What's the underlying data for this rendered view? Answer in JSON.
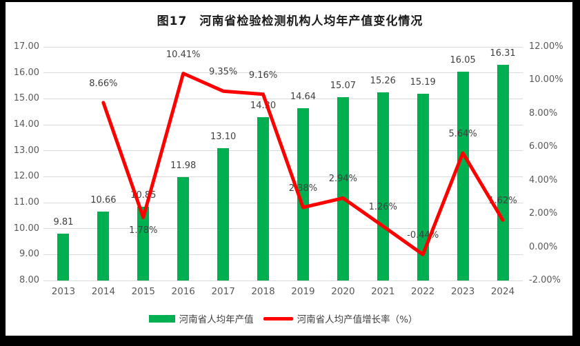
{
  "title": "图17　河南省检验检测机构人均年产值变化情况",
  "legend": {
    "bar_label": "河南省人均年产值",
    "line_label": "河南省人均产值增长率（%）"
  },
  "chart_data": {
    "type": "bar+line",
    "title": "图17　河南省检验检测机构人均年产值变化情况",
    "categories": [
      "2013",
      "2014",
      "2015",
      "2016",
      "2017",
      "2018",
      "2019",
      "2020",
      "2021",
      "2022",
      "2023",
      "2024"
    ],
    "series": [
      {
        "name": "河南省人均年产值",
        "type": "bar",
        "axis": "left",
        "color": "#00B050",
        "values": [
          9.81,
          10.66,
          10.85,
          11.98,
          13.1,
          14.3,
          14.64,
          15.07,
          15.26,
          15.19,
          16.05,
          16.31
        ],
        "labels": [
          "9.81",
          "10.66",
          "10.85",
          "11.98",
          "13.10",
          "14.30",
          "14.64",
          "15.07",
          "15.26",
          "15.19",
          "16.05",
          "16.31"
        ]
      },
      {
        "name": "河南省人均产值增长率（%）",
        "type": "line",
        "axis": "right",
        "color": "#FF0000",
        "values": [
          null,
          8.66,
          1.78,
          10.41,
          9.35,
          9.16,
          2.38,
          2.94,
          1.26,
          -0.44,
          5.64,
          1.62
        ],
        "labels": [
          null,
          "8.66%",
          "1.78%",
          "10.41%",
          "9.35%",
          "9.16%",
          "2.38%",
          "2.94%",
          "1.26%",
          "-0.44%",
          "5.64%",
          "1.62%"
        ],
        "label_side": [
          null,
          "above",
          "below",
          "above",
          "above",
          "above",
          "above",
          "above",
          "above",
          "above",
          "above",
          "above"
        ]
      }
    ],
    "left_axis": {
      "min": 8,
      "max": 17,
      "step": 1,
      "tick_labels": [
        "17.00",
        "16.00",
        "15.00",
        "14.00",
        "13.00",
        "12.00",
        "11.00",
        "10.00",
        "9.00",
        "8.00"
      ]
    },
    "right_axis": {
      "min": -2,
      "max": 12,
      "step": 2,
      "tick_labels": [
        "12.00%",
        "10.00%",
        "8.00%",
        "6.00%",
        "4.00%",
        "2.00%",
        "0.00%",
        "-2.00%"
      ]
    },
    "grid": true,
    "grid_color": "#d9d9d9",
    "legend_position": "bottom"
  }
}
